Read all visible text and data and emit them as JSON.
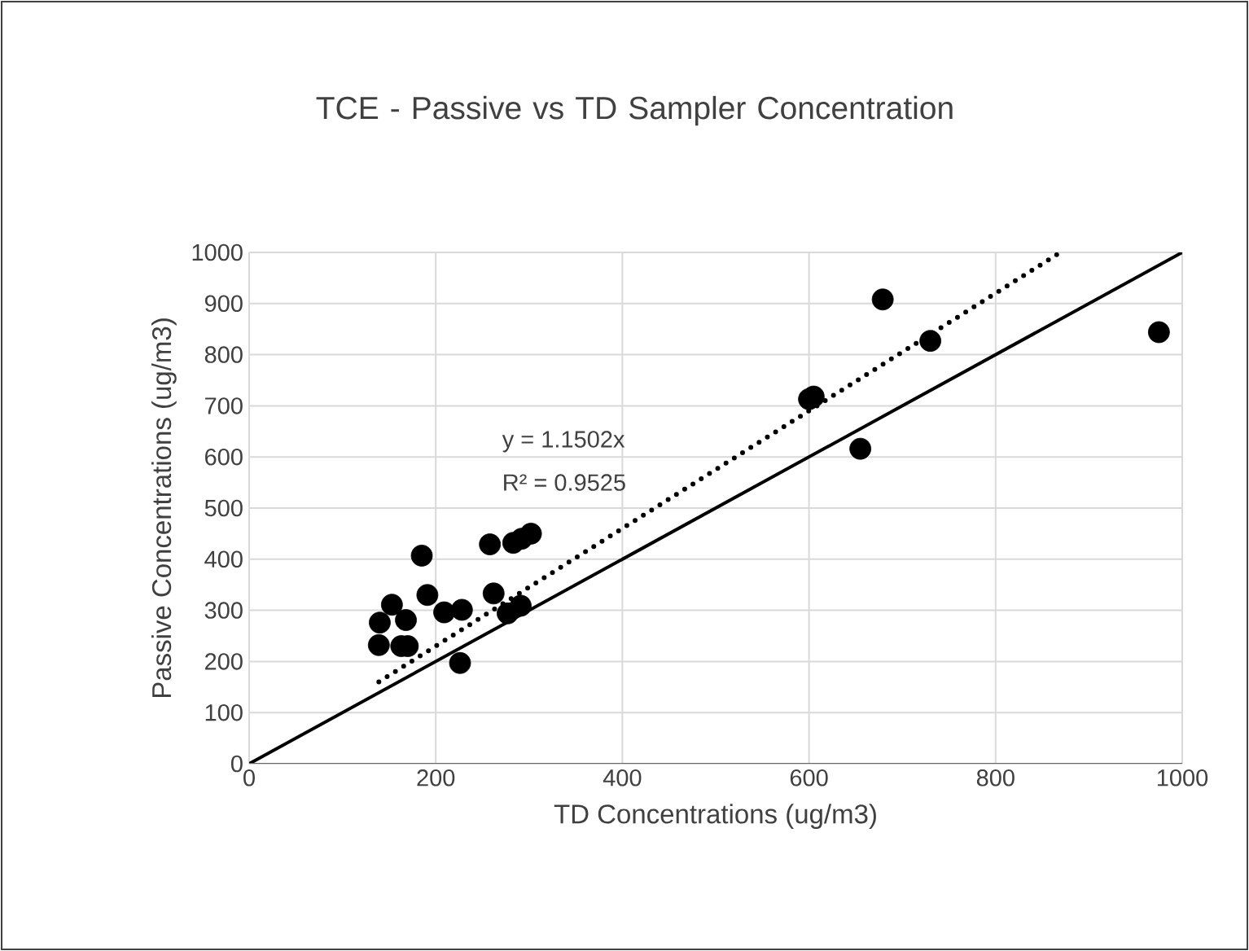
{
  "chart_data": {
    "type": "scatter",
    "title": "TCE - Passive vs TD Sampler Concentration",
    "xlabel": "TD Concentrations (ug/m3)",
    "ylabel": "Passive Concentrations (ug/m3)",
    "xlim": [
      0,
      1000
    ],
    "ylim": [
      0,
      1000
    ],
    "xticks": [
      0,
      200,
      400,
      600,
      800,
      1000
    ],
    "yticks": [
      0,
      100,
      200,
      300,
      400,
      500,
      600,
      700,
      800,
      900,
      1000
    ],
    "grid": true,
    "marker": "circle",
    "annotations": [
      "y = 1.1502x",
      "R² = 0.9525"
    ],
    "series": [
      {
        "color": "#000000",
        "x": [
          139,
          163,
          140,
          153,
          168,
          170,
          185,
          191,
          209,
          228,
          226,
          258,
          262,
          277,
          291,
          283,
          292,
          302,
          600,
          605,
          655,
          679,
          730,
          975
        ],
        "values": [
          232,
          230,
          276,
          311,
          281,
          230,
          407,
          330,
          296,
          301,
          197,
          429,
          333,
          294,
          309,
          432,
          440,
          450,
          713,
          718,
          616,
          908,
          827,
          844
        ]
      },
      {
        "type": "line",
        "color": "#000000",
        "marker": "none",
        "line_style": "dotted",
        "x": [
          139,
          869.4
        ],
        "values": [
          160,
          1000
        ]
      },
      {
        "type": "line",
        "color": "#000000",
        "marker": "none",
        "line_style": "solid",
        "x": [
          0,
          1000
        ],
        "values": [
          0,
          1000
        ]
      }
    ]
  }
}
